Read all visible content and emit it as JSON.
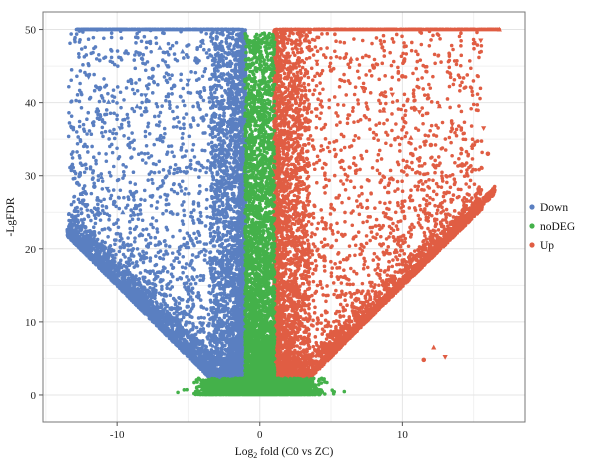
{
  "chart_data": {
    "type": "scatter",
    "subtype": "volcano",
    "title": "",
    "xlabel": {
      "prefix": "Log",
      "subscript": "2",
      "suffix": " fold (C0 vs ZC)"
    },
    "ylabel": "-LgFDR",
    "xlim": [
      -15.2,
      18.6
    ],
    "ylim": [
      -3.7,
      52.4
    ],
    "x_ticks": [
      -10,
      0,
      10
    ],
    "y_ticks": [
      0,
      10,
      20,
      30,
      40,
      50
    ],
    "grid": true,
    "legend_position": "right",
    "series": [
      {
        "name": "Down",
        "color": "#5a7fc1",
        "points": [
          [
            -12.8,
            29.0
          ],
          [
            -12.5,
            27.5
          ],
          [
            -12.3,
            26.0
          ],
          [
            -11.6,
            28.5
          ],
          [
            -11.1,
            29.8
          ],
          [
            -10.7,
            28.2
          ],
          [
            -10.2,
            26.4
          ],
          [
            -9.6,
            25.0
          ],
          [
            -12.0,
            43.5
          ],
          [
            -11.2,
            42.0
          ],
          [
            -10.6,
            40.1
          ],
          [
            -9.8,
            36.5
          ],
          [
            -9.2,
            34.2
          ],
          [
            -8.6,
            39.5
          ],
          [
            -8.0,
            41.0
          ],
          [
            -7.5,
            44.6
          ],
          [
            -7.0,
            47.5
          ],
          [
            -6.5,
            45.0
          ],
          [
            -6.0,
            42.3
          ],
          [
            -5.4,
            47.0
          ],
          [
            -5.0,
            43.0
          ],
          [
            -4.4,
            45.5
          ],
          [
            -4.0,
            48.2
          ],
          [
            -3.2,
            46.0
          ],
          [
            -2.6,
            47.2
          ],
          [
            -2.2,
            44.0
          ],
          [
            -1.7,
            48.5
          ],
          [
            -1.3,
            46.6
          ]
        ]
      },
      {
        "name": "noDEG",
        "color": "#44b14a",
        "points": []
      },
      {
        "name": "Up",
        "color": "#e05d43",
        "points": [
          [
            1.2,
            47.5
          ],
          [
            1.6,
            44.5
          ],
          [
            2.1,
            46.3
          ],
          [
            2.6,
            43.2
          ],
          [
            3.2,
            48.5
          ],
          [
            4.0,
            45.6
          ],
          [
            5.0,
            44.4
          ],
          [
            6.4,
            46.0
          ],
          [
            7.2,
            42.0
          ],
          [
            8.0,
            44.8
          ],
          [
            8.7,
            38.9
          ],
          [
            9.3,
            41.1
          ],
          [
            10.0,
            43.6
          ],
          [
            10.6,
            35.2
          ],
          [
            11.2,
            38.7
          ],
          [
            12.0,
            34.2
          ],
          [
            12.6,
            39.5
          ],
          [
            13.5,
            37.0
          ],
          [
            14.2,
            31.4
          ],
          [
            14.9,
            34.2
          ],
          [
            15.7,
            36.5
          ],
          [
            16.0,
            33.0
          ],
          [
            16.8,
            50.0
          ],
          [
            15.5,
            48.5
          ],
          [
            11.5,
            4.8
          ],
          [
            12.2,
            6.5
          ],
          [
            13.0,
            5.2
          ]
        ]
      }
    ]
  }
}
